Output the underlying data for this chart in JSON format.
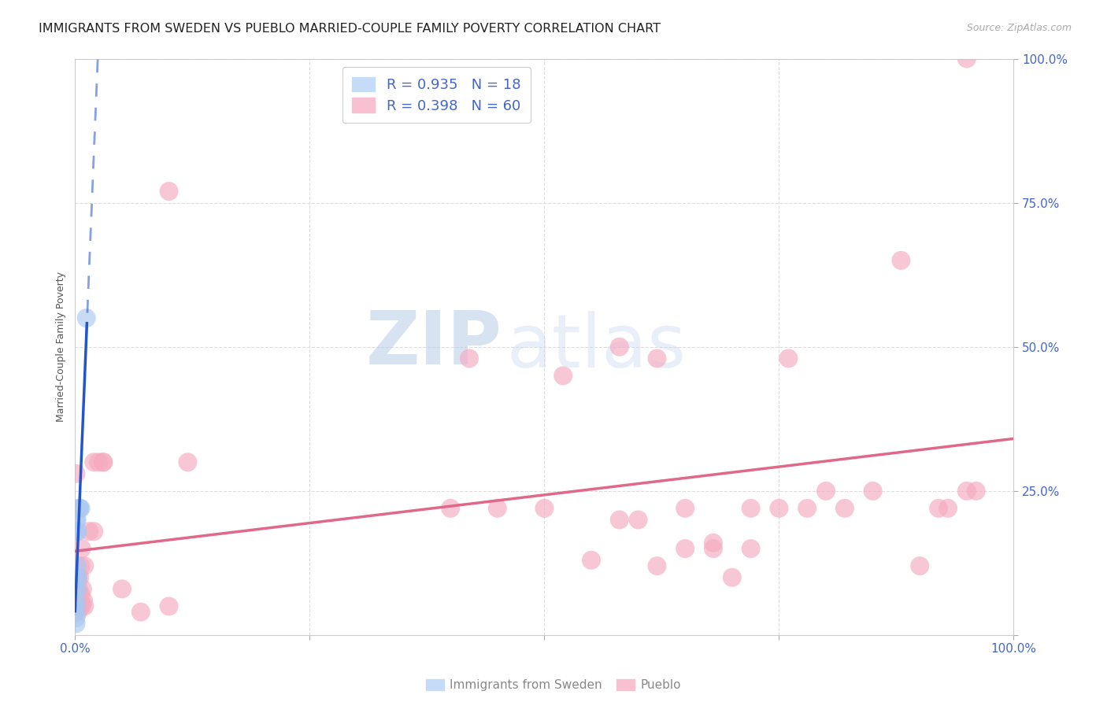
{
  "title": "IMMIGRANTS FROM SWEDEN VS PUEBLO MARRIED-COUPLE FAMILY POVERTY CORRELATION CHART",
  "source": "Source: ZipAtlas.com",
  "ylabel": "Married-Couple Family Poverty",
  "legend_label1": "Immigrants from Sweden",
  "legend_label2": "Pueblo",
  "legend_R1": "R = 0.935",
  "legend_N1": "N = 18",
  "legend_R2": "R = 0.398",
  "legend_N2": "N = 60",
  "watermark_zip": "ZIP",
  "watermark_atlas": "atlas",
  "sweden_color": "#aac8f0",
  "sweden_line_color": "#2255cc",
  "pueblo_color": "#f5aac0",
  "pueblo_line_color": "#e06888",
  "sweden_points_x": [
    0.001,
    0.001,
    0.001,
    0.001,
    0.001,
    0.001,
    0.001,
    0.001,
    0.001,
    0.002,
    0.002,
    0.002,
    0.003,
    0.003,
    0.004,
    0.005,
    0.006,
    0.012
  ],
  "sweden_points_y": [
    0.02,
    0.03,
    0.04,
    0.05,
    0.06,
    0.08,
    0.1,
    0.18,
    0.2,
    0.08,
    0.12,
    0.2,
    0.1,
    0.18,
    0.22,
    0.22,
    0.22,
    0.55
  ],
  "pueblo_points_x": [
    0.001,
    0.001,
    0.002,
    0.002,
    0.003,
    0.003,
    0.003,
    0.004,
    0.005,
    0.005,
    0.006,
    0.006,
    0.007,
    0.007,
    0.008,
    0.009,
    0.01,
    0.01,
    0.015,
    0.02,
    0.02,
    0.025,
    0.03,
    0.03,
    0.05,
    0.07,
    0.1,
    0.1,
    0.12,
    0.4,
    0.42,
    0.45,
    0.5,
    0.52,
    0.55,
    0.58,
    0.6,
    0.62,
    0.65,
    0.68,
    0.7,
    0.72,
    0.75,
    0.76,
    0.78,
    0.8,
    0.82,
    0.85,
    0.88,
    0.9,
    0.92,
    0.93,
    0.95,
    0.96,
    0.58,
    0.62,
    0.65,
    0.68,
    0.72,
    0.95
  ],
  "pueblo_points_y": [
    0.28,
    0.05,
    0.05,
    0.1,
    0.04,
    0.07,
    0.1,
    0.08,
    0.05,
    0.1,
    0.07,
    0.12,
    0.05,
    0.15,
    0.08,
    0.06,
    0.05,
    0.12,
    0.18,
    0.18,
    0.3,
    0.3,
    0.3,
    0.3,
    0.08,
    0.04,
    0.05,
    0.77,
    0.3,
    0.22,
    0.48,
    0.22,
    0.22,
    0.45,
    0.13,
    0.2,
    0.2,
    0.12,
    0.15,
    0.16,
    0.1,
    0.15,
    0.22,
    0.48,
    0.22,
    0.25,
    0.22,
    0.25,
    0.65,
    0.12,
    0.22,
    0.22,
    0.25,
    0.25,
    0.5,
    0.48,
    0.22,
    0.15,
    0.22,
    1.0
  ],
  "xlim": [
    0.0,
    1.0
  ],
  "ylim": [
    0.0,
    1.0
  ],
  "xtick_positions": [
    0.0,
    0.25,
    0.5,
    0.75,
    1.0
  ],
  "xtick_labels": [
    "0.0%",
    "",
    "",
    "",
    "100.0%"
  ],
  "ytick_positions": [
    0.0,
    0.25,
    0.5,
    0.75,
    1.0
  ],
  "ytick_labels": [
    "",
    "25.0%",
    "50.0%",
    "75.0%",
    "100.0%"
  ],
  "grid_color": "#dddddd",
  "background_color": "#ffffff",
  "title_fontsize": 11.5,
  "axis_label_fontsize": 9,
  "tick_fontsize": 11,
  "legend_fontsize": 13
}
